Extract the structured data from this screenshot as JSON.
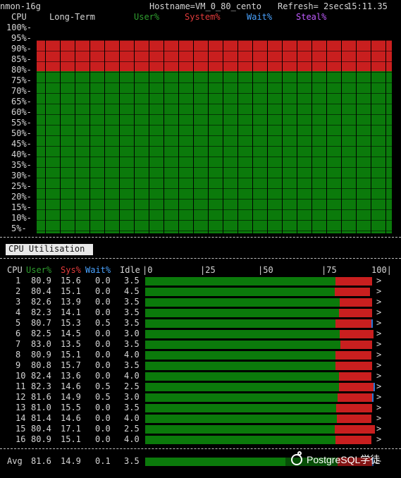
{
  "header": {
    "left": "nmon-16g",
    "hostname": "Hostname=VM_0_80_cento",
    "refresh": "Refresh= 2secs",
    "time": "15:11.35"
  },
  "long_term": {
    "cpu_label": "CPU",
    "title": "Long-Term",
    "legend": {
      "user": "User%",
      "system": "System%",
      "wait": "Wait%",
      "steal": "Steal%"
    },
    "y_ticks": [
      "100%-",
      "95%-",
      "90%-",
      "85%-",
      "80%-",
      "75%-",
      "70%-",
      "65%-",
      "60%-",
      "55%-",
      "50%-",
      "45%-",
      "40%-",
      "35%-",
      "30%-",
      "25%-",
      "20%-",
      "15%-",
      "10%-",
      "5%-"
    ]
  },
  "panel_tab": {
    "label": "CPU Utilisation"
  },
  "cpu_table": {
    "headers": {
      "cpu": "CPU",
      "user": "User%",
      "sys": "Sys%",
      "wait": "Wait%",
      "idle": "Idle"
    },
    "scale": {
      "s0": "|0",
      "s25": "|25",
      "s50": "|50",
      "s75": "|75",
      "s100": "100|"
    },
    "rows": [
      {
        "cpu": "1",
        "user": "80.9",
        "sys": "15.6",
        "wait": "0.0",
        "idle": "3.5",
        "user_pct": 80.9,
        "sys_pct": 15.6,
        "wait_pct": 0,
        "tail": ">"
      },
      {
        "cpu": "2",
        "user": "80.4",
        "sys": "15.1",
        "wait": "0.0",
        "idle": "4.5",
        "user_pct": 80.4,
        "sys_pct": 15.1,
        "wait_pct": 0,
        "tail": ">"
      },
      {
        "cpu": "3",
        "user": "82.6",
        "sys": "13.9",
        "wait": "0.0",
        "idle": "3.5",
        "user_pct": 82.6,
        "sys_pct": 13.9,
        "wait_pct": 0,
        "tail": ">"
      },
      {
        "cpu": "4",
        "user": "82.3",
        "sys": "14.1",
        "wait": "0.0",
        "idle": "3.5",
        "user_pct": 82.3,
        "sys_pct": 14.1,
        "wait_pct": 0,
        "tail": ">"
      },
      {
        "cpu": "5",
        "user": "80.7",
        "sys": "15.3",
        "wait": "0.5",
        "idle": "3.5",
        "user_pct": 80.7,
        "sys_pct": 15.3,
        "wait_pct": 0.5,
        "tail": ">"
      },
      {
        "cpu": "6",
        "user": "82.5",
        "sys": "14.5",
        "wait": "0.0",
        "idle": "3.0",
        "user_pct": 82.5,
        "sys_pct": 14.5,
        "wait_pct": 0,
        "tail": ">"
      },
      {
        "cpu": "7",
        "user": "83.0",
        "sys": "13.5",
        "wait": "0.0",
        "idle": "3.5",
        "user_pct": 83.0,
        "sys_pct": 13.5,
        "wait_pct": 0,
        "tail": ">"
      },
      {
        "cpu": "8",
        "user": "80.9",
        "sys": "15.1",
        "wait": "0.0",
        "idle": "4.0",
        "user_pct": 80.9,
        "sys_pct": 15.1,
        "wait_pct": 0,
        "tail": ">"
      },
      {
        "cpu": "9",
        "user": "80.8",
        "sys": "15.7",
        "wait": "0.0",
        "idle": "3.5",
        "user_pct": 80.8,
        "sys_pct": 15.7,
        "wait_pct": 0,
        "tail": ">"
      },
      {
        "cpu": "10",
        "user": "82.4",
        "sys": "13.6",
        "wait": "0.0",
        "idle": "4.0",
        "user_pct": 82.4,
        "sys_pct": 13.6,
        "wait_pct": 0,
        "tail": ">"
      },
      {
        "cpu": "11",
        "user": "82.3",
        "sys": "14.6",
        "wait": "0.5",
        "idle": "2.5",
        "user_pct": 82.3,
        "sys_pct": 14.6,
        "wait_pct": 0.5,
        "tail": ">"
      },
      {
        "cpu": "12",
        "user": "81.6",
        "sys": "14.9",
        "wait": "0.5",
        "idle": "3.0",
        "user_pct": 81.6,
        "sys_pct": 14.9,
        "wait_pct": 0.5,
        "tail": ">"
      },
      {
        "cpu": "13",
        "user": "81.0",
        "sys": "15.5",
        "wait": "0.0",
        "idle": "3.5",
        "user_pct": 81.0,
        "sys_pct": 15.5,
        "wait_pct": 0,
        "tail": ">"
      },
      {
        "cpu": "14",
        "user": "81.4",
        "sys": "14.6",
        "wait": "0.0",
        "idle": "4.0",
        "user_pct": 81.4,
        "sys_pct": 14.6,
        "wait_pct": 0,
        "tail": ">"
      },
      {
        "cpu": "15",
        "user": "80.4",
        "sys": "17.1",
        "wait": "0.0",
        "idle": "2.5",
        "user_pct": 80.4,
        "sys_pct": 17.1,
        "wait_pct": 0,
        "tail": ">"
      },
      {
        "cpu": "16",
        "user": "80.9",
        "sys": "15.1",
        "wait": "0.0",
        "idle": "4.0",
        "user_pct": 80.9,
        "sys_pct": 15.1,
        "wait_pct": 0,
        "tail": ">"
      }
    ],
    "avg": {
      "label": "Avg",
      "user": "81.6",
      "sys": "14.9",
      "wait": "0.1",
      "idle": "3.5",
      "user_pct": 81.6,
      "sys_pct": 14.9,
      "wait_pct": 0.1,
      "tail": ">"
    }
  },
  "watermark": {
    "text": "PostgreSQL学徒"
  },
  "colors": {
    "user": "#0b7a0b",
    "system": "#c91f1f",
    "wait": "#2a78d8",
    "steal": "#c05cff",
    "bg": "#000000"
  },
  "chart_data": {
    "type": "bar",
    "title": "Long-Term",
    "xlabel": "",
    "ylabel": "CPU",
    "ylim": [
      0,
      100
    ],
    "series": [
      {
        "name": "User%",
        "values": [
          80,
          80,
          80,
          80,
          80,
          80,
          80,
          80,
          80,
          80,
          80,
          80,
          80,
          80,
          80,
          80,
          80,
          80,
          80,
          80,
          80,
          80,
          80,
          80,
          80,
          80,
          80,
          80,
          80,
          80,
          80,
          80,
          80,
          80,
          80,
          80,
          80,
          80,
          80,
          80,
          80,
          80,
          80,
          80,
          80,
          80,
          80,
          80,
          80,
          80,
          80,
          80,
          80,
          80,
          80,
          80,
          80,
          80,
          80,
          80,
          80,
          80,
          80,
          80,
          80,
          80,
          80,
          80,
          80,
          80,
          80,
          80,
          80,
          80,
          80,
          80,
          80,
          80,
          80,
          80,
          80,
          80,
          80,
          80,
          80,
          80,
          80,
          80,
          80,
          80,
          80,
          80,
          80,
          80,
          80,
          80,
          80,
          80,
          80,
          80,
          80,
          80,
          80,
          80,
          80,
          80,
          80,
          80,
          80,
          80,
          80,
          80,
          80,
          80,
          80,
          80,
          80,
          80,
          80,
          80
        ]
      },
      {
        "name": "System%",
        "values": [
          15,
          15,
          15,
          15,
          15,
          15,
          15,
          15,
          15,
          15,
          15,
          15,
          15,
          15,
          15,
          15,
          15,
          15,
          15,
          15,
          15,
          15,
          15,
          15,
          15,
          15,
          15,
          15,
          15,
          15,
          15,
          15,
          15,
          15,
          15,
          15,
          15,
          15,
          15,
          15,
          15,
          15,
          15,
          15,
          15,
          15,
          15,
          15,
          15,
          15,
          15,
          15,
          15,
          15,
          15,
          15,
          15,
          15,
          15,
          15,
          15,
          15,
          15,
          15,
          15,
          15,
          15,
          15,
          15,
          15,
          15,
          15,
          15,
          15,
          15,
          15,
          15,
          15,
          15,
          15,
          15,
          15,
          15,
          15,
          15,
          15,
          15,
          15,
          15,
          15,
          15,
          15,
          15,
          15,
          15,
          15,
          15,
          15,
          15,
          15,
          15,
          15,
          15,
          15,
          15,
          15,
          15,
          15,
          15,
          15,
          15,
          15,
          15,
          15,
          15,
          15,
          15,
          15,
          15,
          15
        ]
      }
    ]
  }
}
